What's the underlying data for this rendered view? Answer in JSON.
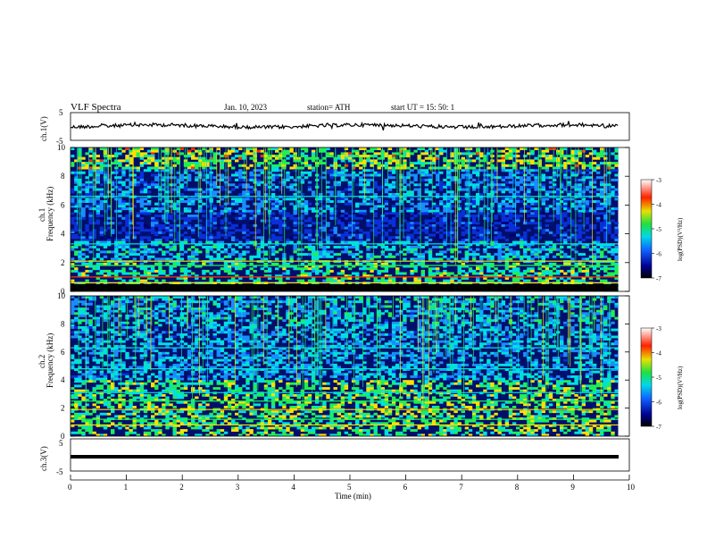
{
  "header": {
    "title": "VLF  Spectra",
    "date": "Jan.  10,  2023",
    "station": "station= ATH",
    "start_ut": "start  UT  =    15: 50: 1"
  },
  "colors": {
    "background_low": "#000070",
    "levels": [
      "#000070",
      "#0a2fd8",
      "#1a8cff",
      "#00e0e0",
      "#22ee55",
      "#ffe000",
      "#ff3300",
      "#ffffff"
    ]
  },
  "chart_data": [
    {
      "type": "line",
      "name": "ch1-waveform",
      "ylabel": "ch.1(V)",
      "xlim": [
        0,
        10
      ],
      "ylim": [
        -5,
        5
      ],
      "yticks": [
        "5",
        "-5"
      ],
      "description_of_values": "noisy trace near 0 V across 0–9.8 min",
      "approx_level": 0.3
    },
    {
      "type": "heatmap",
      "name": "ch1-spectrogram",
      "ylabel": "ch.1\nFrequency  (kHz)",
      "xlim": [
        0,
        9.8
      ],
      "ylim": [
        0,
        10
      ],
      "yticks": [
        "0",
        "2",
        "4",
        "6",
        "8",
        "10"
      ],
      "colorbar": {
        "label": "log(PSD)(V²/Hz)",
        "ticks": [
          "-3",
          "-4",
          "-5",
          "-6",
          "-7"
        ],
        "range": [
          -7,
          -3
        ]
      }
    },
    {
      "type": "heatmap",
      "name": "ch2-spectrogram",
      "ylabel": "ch.2\nFrequency  (kHz)",
      "xlim": [
        0,
        9.8
      ],
      "ylim": [
        0,
        10
      ],
      "yticks": [
        "0",
        "2",
        "4",
        "6",
        "8",
        "10"
      ],
      "colorbar": {
        "label": "log(PSD)(V²/Hz)",
        "ticks": [
          "-3",
          "-4",
          "-5",
          "-6",
          "-7"
        ],
        "range": [
          -7,
          -3
        ]
      }
    },
    {
      "type": "line",
      "name": "ch3-waveform",
      "ylabel": "ch.3(V)",
      "xlim": [
        0,
        10
      ],
      "ylim": [
        -5,
        5
      ],
      "yticks": [
        "5",
        "-5"
      ],
      "approx_level": -2
    }
  ],
  "xaxis": {
    "label": "Time  (min)",
    "ticks": [
      "0",
      "1",
      "2",
      "3",
      "4",
      "5",
      "6",
      "7",
      "8",
      "9",
      "10"
    ]
  }
}
